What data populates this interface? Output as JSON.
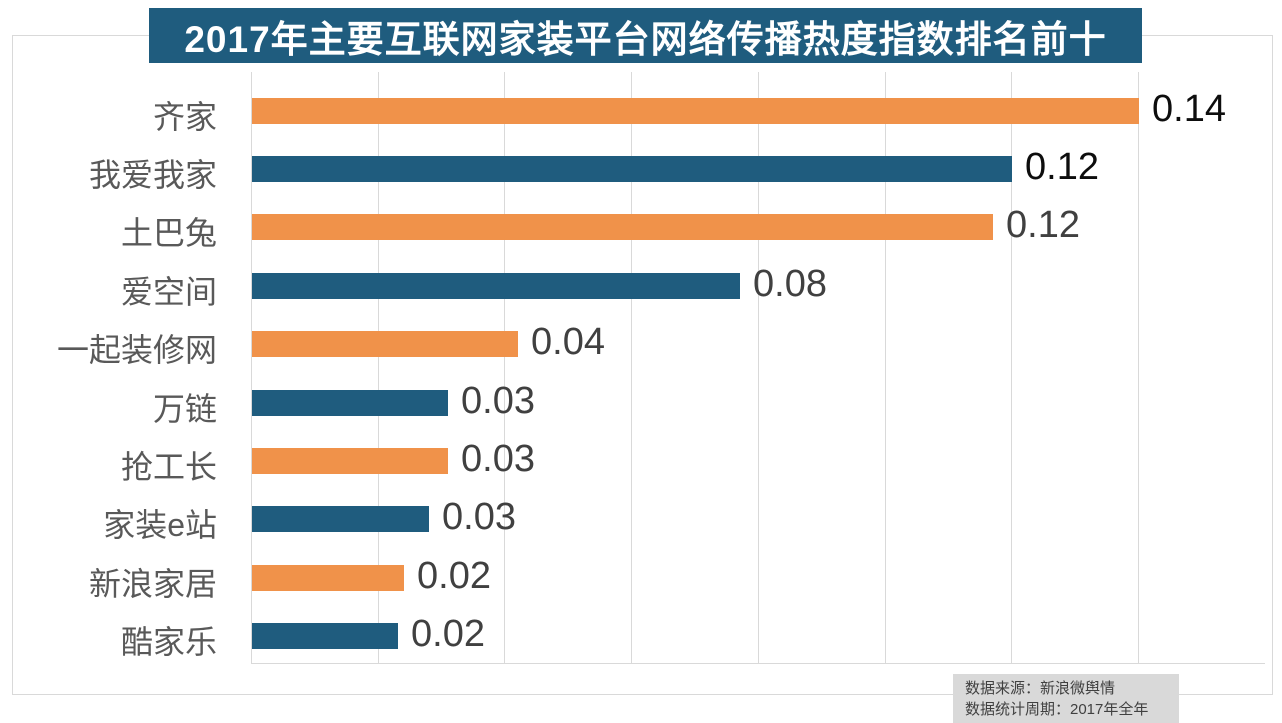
{
  "title": "2017年主要互联网家装平台网络传播热度指数排名前十",
  "footer": {
    "source": "数据来源：新浪微舆情",
    "period": "数据统计周期：2017年全年"
  },
  "colors": {
    "orange_bar": "#F0924A",
    "blue_bar": "#1F5C7E",
    "title_bg": "#1F5C7E",
    "title_text": "#FFFFFF",
    "grid": "#D9D9D9",
    "box_border": "#D9D9D9",
    "category_label": "#595959",
    "value_label_primary": "#0D0D0D",
    "value_label_secondary": "#404040",
    "footer_bg": "#D9D9D9",
    "footer_text": "#404040"
  },
  "chart_data": {
    "type": "bar",
    "orientation": "horizontal",
    "title": "2017年主要互联网家装平台网络传播热度指数排名前十",
    "categories": [
      "齐家",
      "我爱我家",
      "土巴兔",
      "爱空间",
      "一起装修网",
      "万链",
      "抢工长",
      "家装e站",
      "新浪家居",
      "酷家乐"
    ],
    "values": [
      0.14,
      0.12,
      0.12,
      0.08,
      0.04,
      0.03,
      0.03,
      0.03,
      0.02,
      0.02
    ],
    "value_labels": [
      "0.14",
      "0.12",
      "0.12",
      "0.08",
      "0.04",
      "0.03",
      "0.03",
      "0.03",
      "0.02",
      "0.02"
    ],
    "values_precise": [
      0.14,
      0.12,
      0.117,
      0.077,
      0.042,
      0.031,
      0.031,
      0.028,
      0.024,
      0.023
    ],
    "bar_color_pattern": [
      "#F0924A",
      "#1F5C7E"
    ],
    "xlim": [
      0,
      0.16
    ],
    "grid_values": [
      0,
      0.02,
      0.04,
      0.06,
      0.08,
      0.1,
      0.12,
      0.14
    ],
    "xlabel": "",
    "ylabel": "",
    "legend": null,
    "grid": "vertical-lines",
    "data_labels": "end-of-bar"
  }
}
